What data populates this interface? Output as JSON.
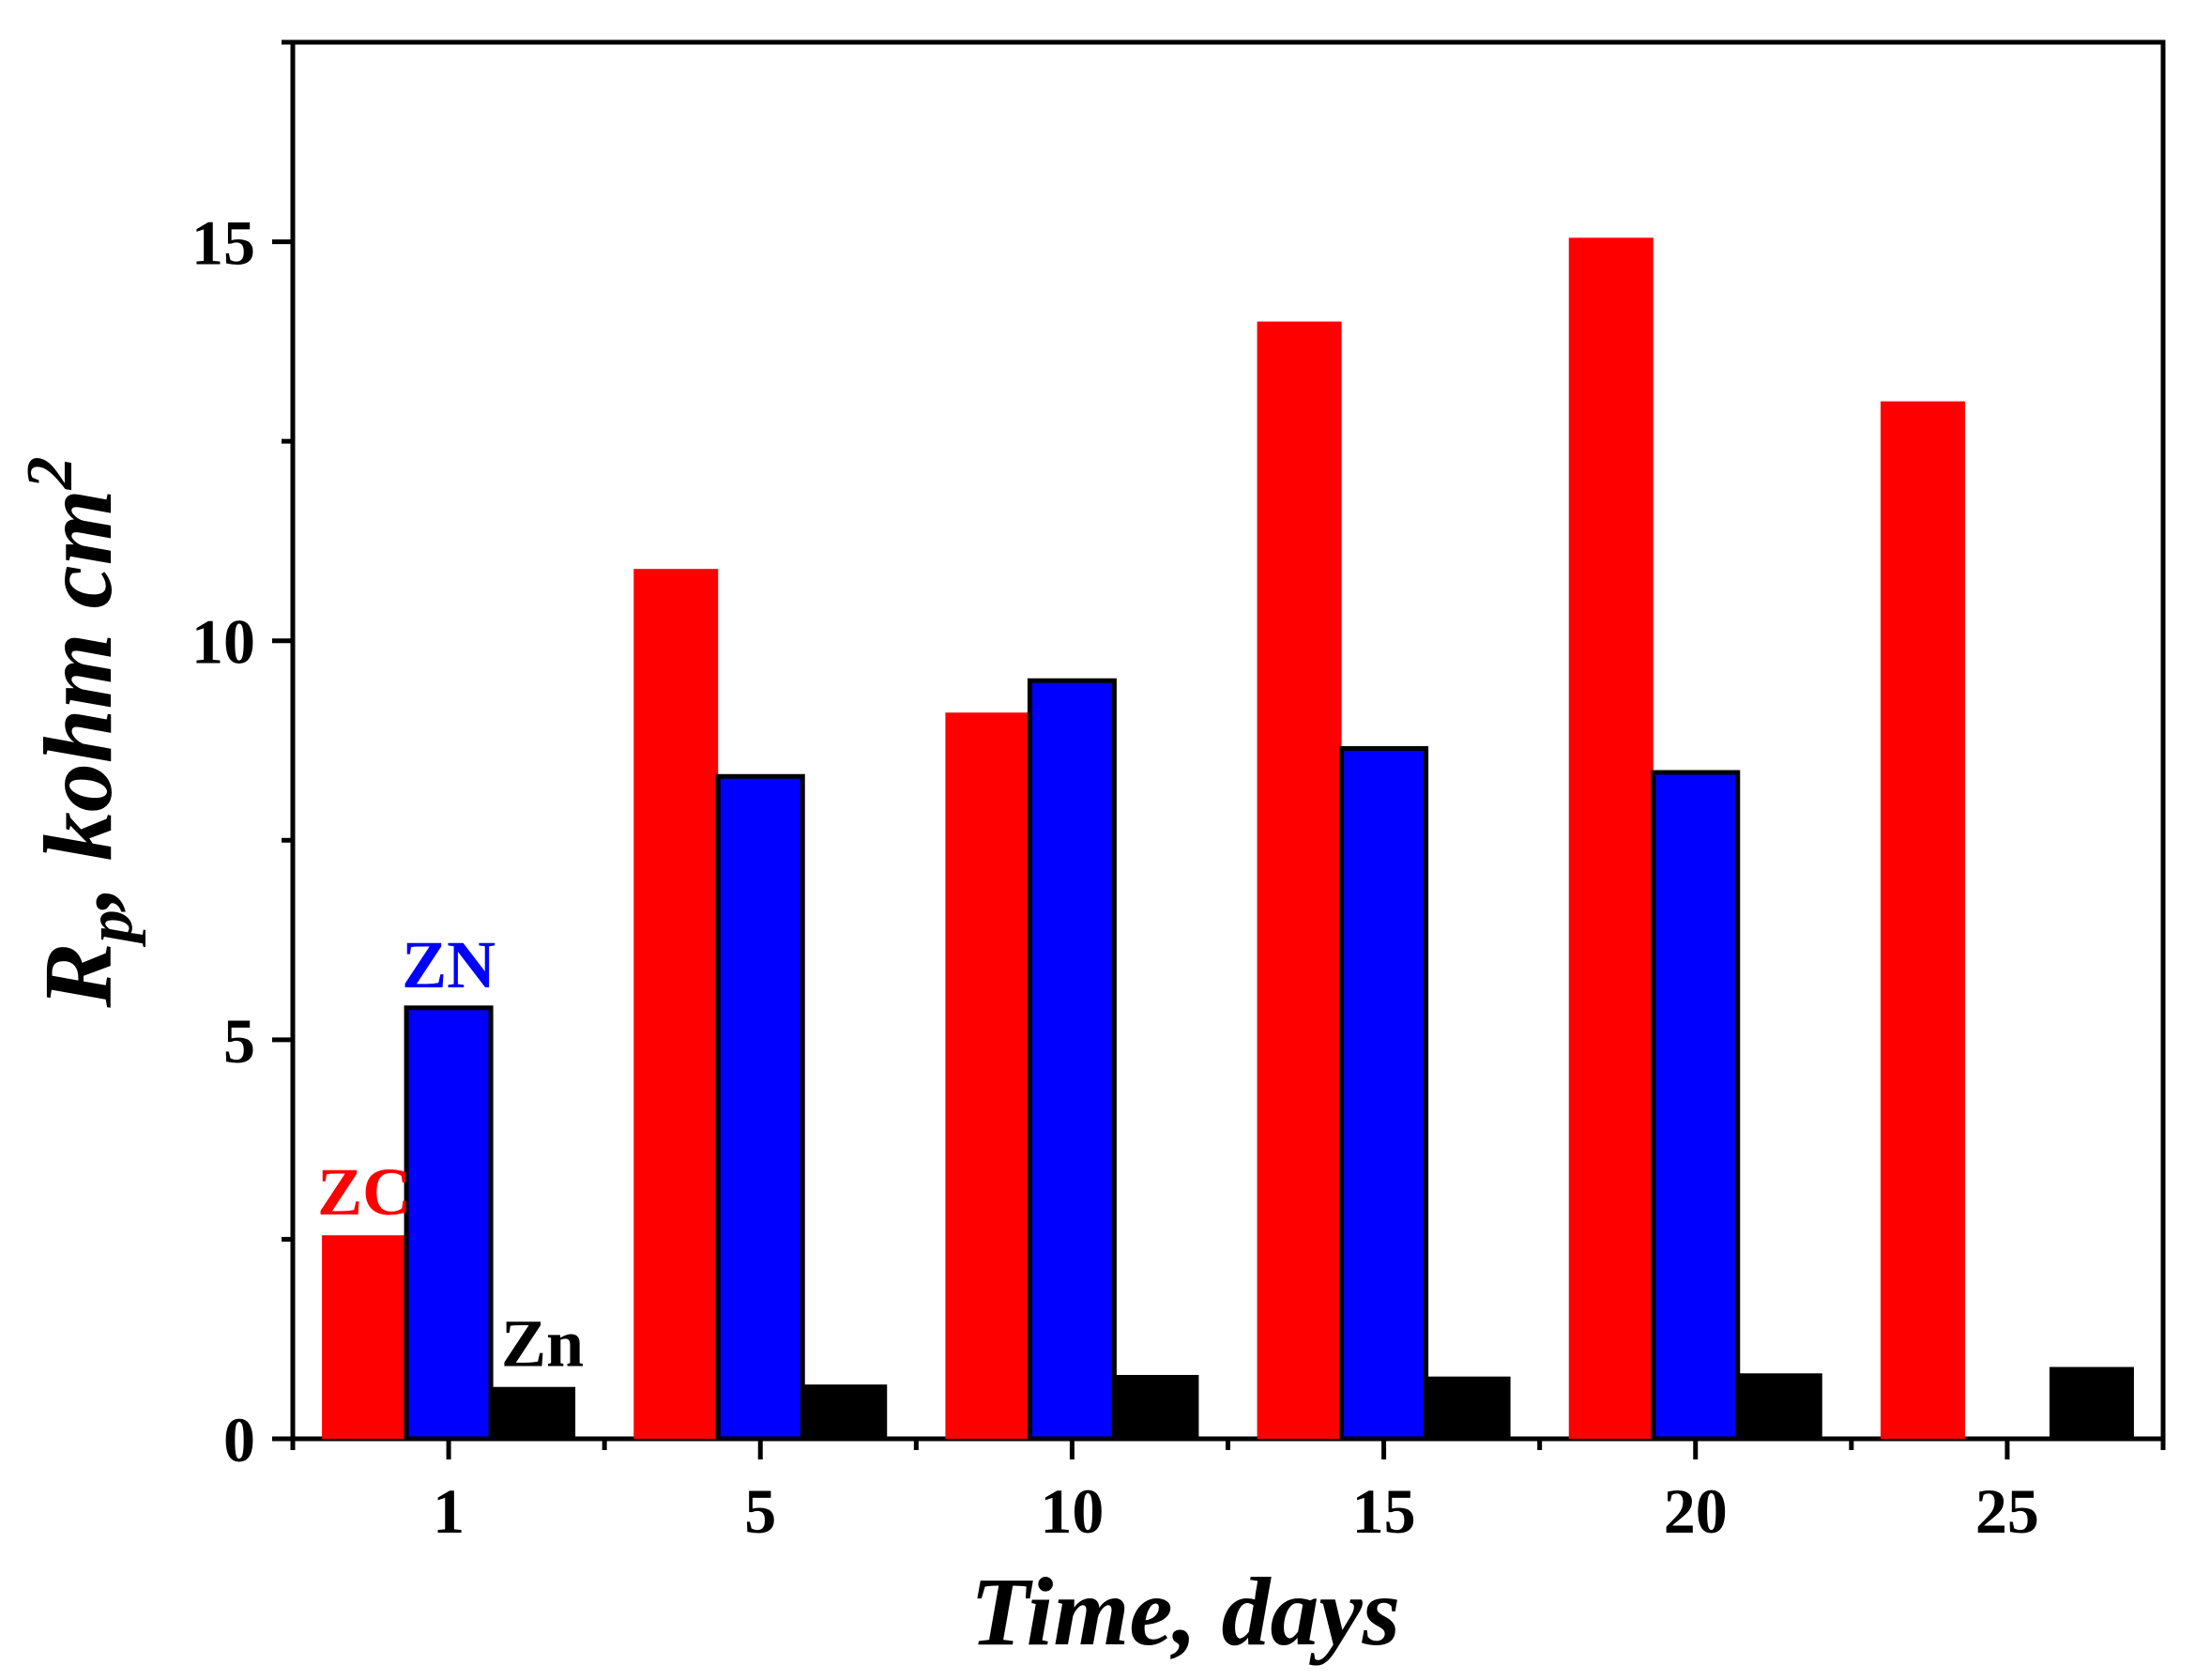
{
  "chart_data": {
    "type": "bar",
    "title": "",
    "xlabel": "Time, days",
    "ylabel": {
      "main": "R",
      "sub": "p",
      "rest": ", kohm cm",
      "sup": "2"
    },
    "categories": [
      "1",
      "5",
      "10",
      "15",
      "20",
      "25"
    ],
    "ylim": [
      0,
      17.5
    ],
    "yticks": [
      0,
      5,
      10,
      15
    ],
    "series": [
      {
        "name": "ZC",
        "color": "#ff0000",
        "outlined": false,
        "values": [
          2.55,
          10.9,
          9.1,
          14.0,
          15.05,
          13.0
        ]
      },
      {
        "name": "ZN",
        "color": "#0000ff",
        "outlined": true,
        "values": [
          5.4,
          8.3,
          9.5,
          8.65,
          8.35,
          null
        ]
      },
      {
        "name": "Zn",
        "color": "#000000",
        "outlined": false,
        "values": [
          0.65,
          0.68,
          0.8,
          0.78,
          0.82,
          0.9
        ]
      }
    ],
    "annotations": [
      {
        "text": "ZC",
        "series": 0,
        "category": 0
      },
      {
        "text": "ZN",
        "series": 1,
        "category": 0
      },
      {
        "text": "Zn",
        "series": 2,
        "category": 0
      }
    ]
  }
}
